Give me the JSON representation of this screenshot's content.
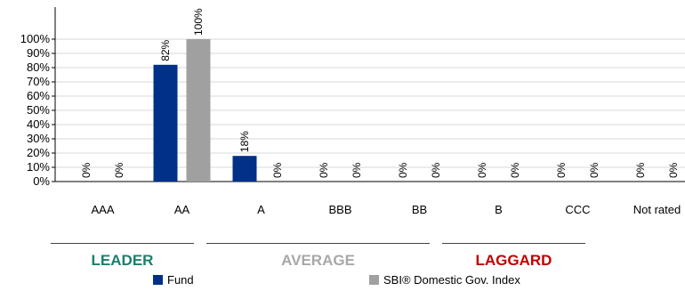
{
  "chart_data": {
    "type": "bar",
    "categories": [
      "AAA",
      "AA",
      "A",
      "BBB",
      "BB",
      "B",
      "CCC",
      "Not rated"
    ],
    "series": [
      {
        "name": "Fund",
        "color": "#003087",
        "values": [
          0,
          82,
          18,
          0,
          0,
          0,
          0,
          0
        ]
      },
      {
        "name": "SBI® Domestic Gov. Index",
        "color": "#a0a0a0",
        "values": [
          0,
          100,
          0,
          0,
          0,
          0,
          0,
          0
        ]
      }
    ],
    "value_labels": {
      "Fund": [
        "0%",
        "82%",
        "18%",
        "0%",
        "0%",
        "0%",
        "0%",
        "0%"
      ],
      "SBI® Domestic Gov. Index": [
        "0%",
        "100%",
        "0%",
        "0%",
        "0%",
        "0%",
        "0%",
        "0%"
      ]
    },
    "y_ticks": [
      "0%",
      "10%",
      "20%",
      "30%",
      "40%",
      "50%",
      "60%",
      "70%",
      "80%",
      "90%",
      "100%"
    ],
    "ylim": [
      0,
      100
    ],
    "grid": true,
    "legend_position": "bottom",
    "groups": [
      {
        "label": "LEADER",
        "color": "#1a7f6e"
      },
      {
        "label": "AVERAGE",
        "color": "#a8a8a8"
      },
      {
        "label": "LAGGARD",
        "color": "#c00000"
      }
    ]
  }
}
